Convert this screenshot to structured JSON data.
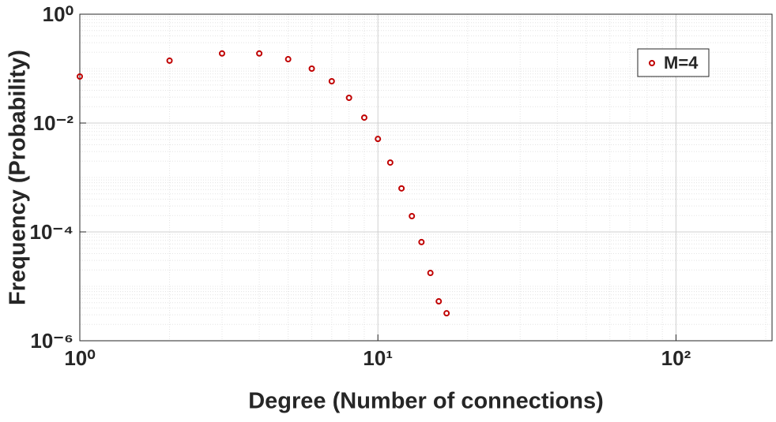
{
  "chart_data": {
    "type": "scatter",
    "x_label": "Degree (Number of connections)",
    "y_label": "Frequency (Probability)",
    "xscale": "log",
    "yscale": "log",
    "grid": true,
    "minor_grid": true,
    "legend_position": "upper right",
    "xlim": [
      1,
      210
    ],
    "ylim": [
      1e-06,
      1
    ],
    "xticks": [
      {
        "value": 1,
        "label": "10⁰"
      },
      {
        "value": 10,
        "label": "10¹"
      },
      {
        "value": 100,
        "label": "10²"
      }
    ],
    "yticks": [
      {
        "value": 1e-06,
        "label": "10⁻⁶"
      },
      {
        "value": 0.0001,
        "label": "10⁻⁴"
      },
      {
        "value": 0.01,
        "label": "10⁻²"
      },
      {
        "value": 1,
        "label": "10⁰"
      }
    ],
    "series": [
      {
        "name": "M=4",
        "color": "#c00000",
        "x": [
          1,
          2,
          3,
          4,
          5,
          6,
          7,
          8,
          9,
          10,
          11,
          12,
          13,
          14,
          15,
          16,
          17
        ],
        "values": [
          0.0716,
          0.14,
          0.19,
          0.19,
          0.149,
          0.1,
          0.0586,
          0.0291,
          0.0126,
          0.0051,
          0.00188,
          0.00063,
          0.000195,
          6.5e-05,
          1.76e-05,
          5.3e-06,
          3.2e-06
        ]
      }
    ]
  }
}
